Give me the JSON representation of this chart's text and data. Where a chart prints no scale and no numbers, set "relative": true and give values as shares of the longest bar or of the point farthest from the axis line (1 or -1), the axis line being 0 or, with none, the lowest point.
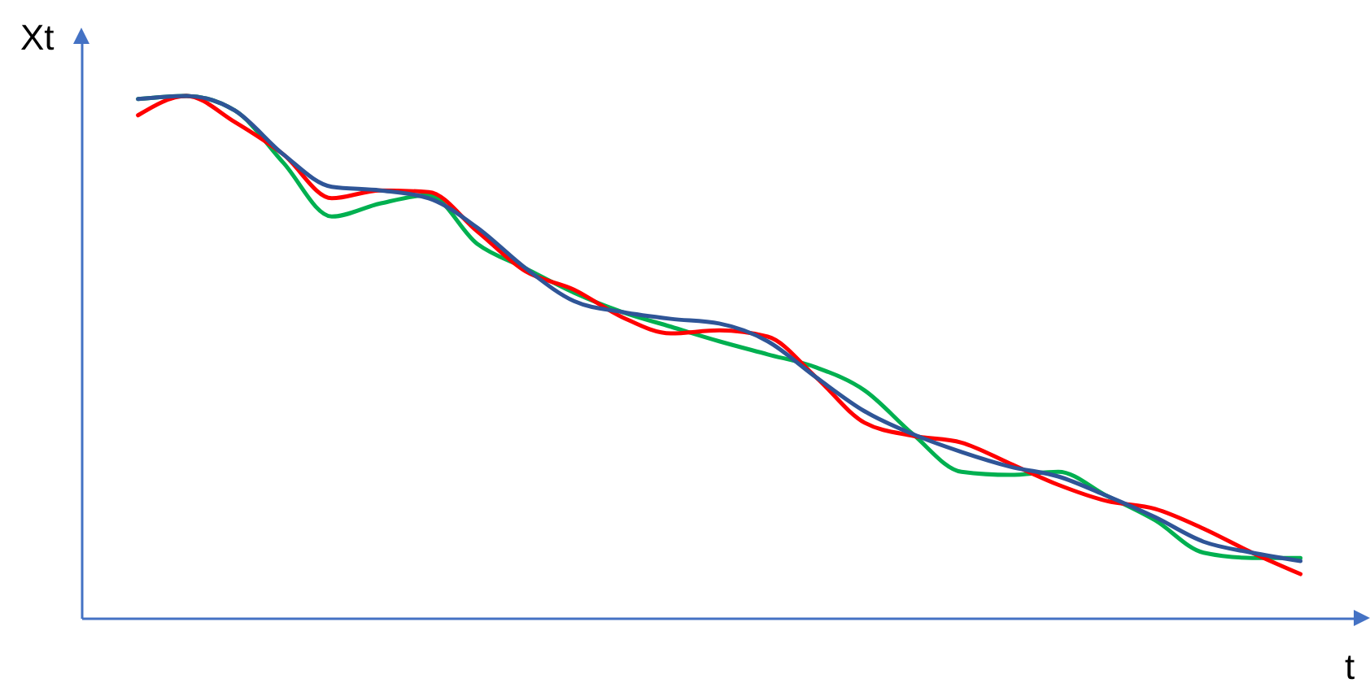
{
  "chart_data": {
    "type": "line",
    "xlabel": "t",
    "ylabel": "Xt",
    "relative": true,
    "tick_labels": false,
    "categories": [
      null,
      null,
      null,
      null,
      null,
      null,
      null,
      null,
      null,
      null,
      null,
      null,
      null,
      null,
      null,
      null,
      null,
      null,
      null,
      null,
      null,
      null,
      null,
      null,
      null
    ],
    "series": [
      {
        "color": "#00b050",
        "values": [
          0.994,
          1,
          0.972,
          0.872,
          0.769,
          0.794,
          0.81,
          0.717,
          0.67,
          0.623,
          0.586,
          0.558,
          0.53,
          0.505,
          0.48,
          0.436,
          0.352,
          0.28,
          0.274,
          0.28,
          0.234,
          0.187,
          0.125,
          0.115,
          0.115
        ]
      },
      {
        "color": "#ff0000",
        "values": [
          0.963,
          1,
          0.95,
          0.888,
          0.804,
          0.819,
          0.816,
          0.741,
          0.664,
          0.629,
          0.576,
          0.545,
          0.551,
          0.539,
          0.461,
          0.374,
          0.349,
          0.336,
          0.296,
          0.255,
          0.224,
          0.209,
          0.171,
          0.125,
          0.084
        ]
      },
      {
        "color": "#2f5597",
        "values": [
          0.994,
          1,
          0.972,
          0.888,
          0.826,
          0.819,
          0.804,
          0.748,
          0.67,
          0.607,
          0.586,
          0.573,
          0.564,
          0.53,
          0.461,
          0.396,
          0.352,
          0.318,
          0.29,
          0.271,
          0.234,
          0.193,
          0.146,
          0.125,
          0.109
        ]
      }
    ]
  }
}
